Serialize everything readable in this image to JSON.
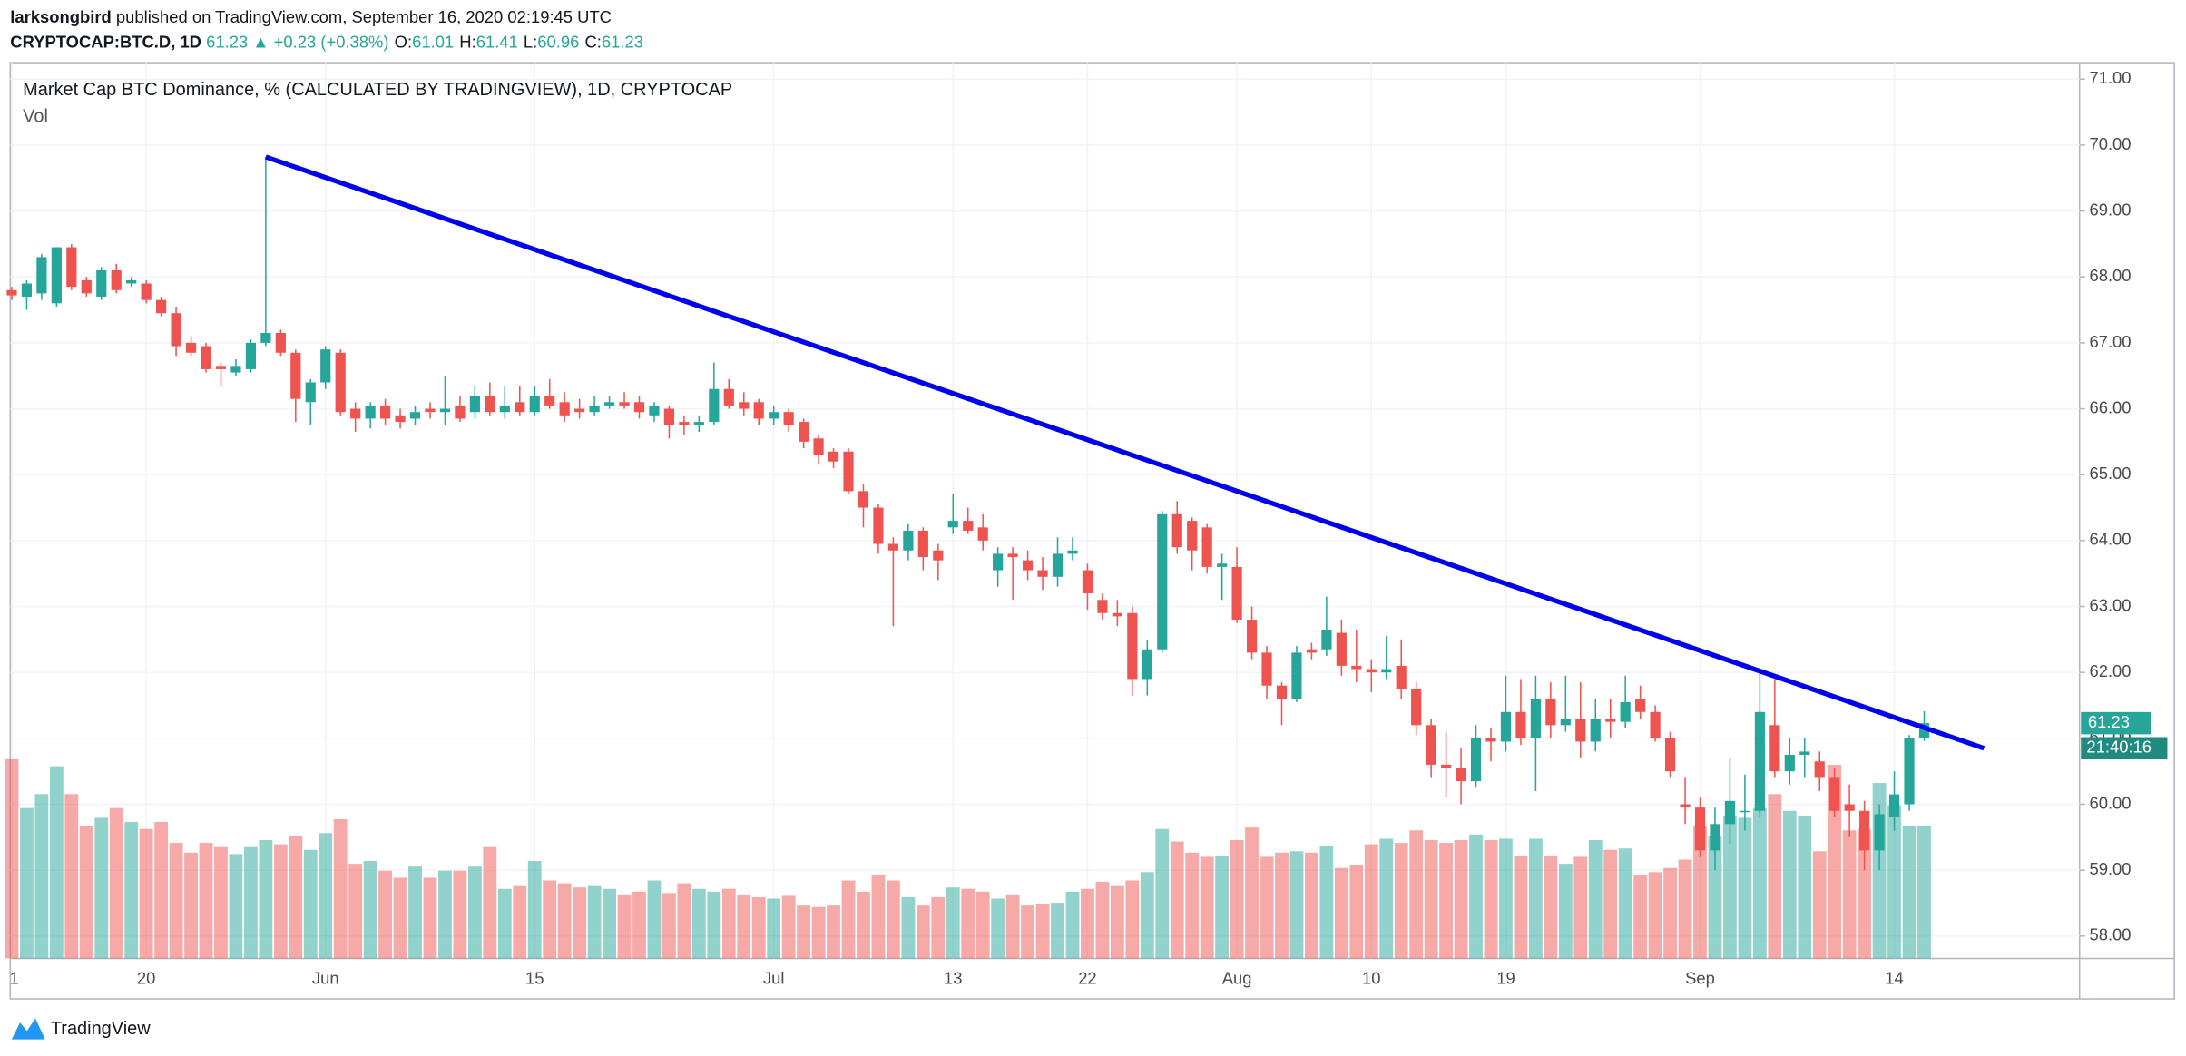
{
  "header": {
    "author": "larksongbird",
    "published": "published on TradingView.com, September 16, 2020 02:19:45 UTC",
    "symbol": "CRYPTOCAP:BTC.D, 1D",
    "last": "61.23",
    "change": "▲ +0.23 (+0.38%)",
    "ohlc_labels": [
      {
        "label": "O:",
        "value": "61.01"
      },
      {
        "label": "H:",
        "value": "61.41"
      },
      {
        "label": "L:",
        "value": "60.96"
      },
      {
        "label": "C:",
        "value": "61.23"
      }
    ]
  },
  "footer": {
    "brand": "TradingView"
  },
  "chart_data": {
    "type": "candlestick",
    "title": "Market Cap BTC Dominance, % (CALCULATED BY TRADINGVIEW), 1D, CRYPTOCAP",
    "volume_label": "Vol",
    "countdown": "21:40:16",
    "up_color": "#26a69a",
    "down_color": "#ef5350",
    "grid": true,
    "xlim": [
      -0.1,
      138.4
    ],
    "xticks": [
      {
        "value": 0,
        "label": "1"
      },
      {
        "value": 9,
        "label": "20"
      },
      {
        "value": 21,
        "label": "Jun"
      },
      {
        "value": 35,
        "label": "15"
      },
      {
        "value": 51,
        "label": "Jul"
      },
      {
        "value": 63,
        "label": "13"
      },
      {
        "value": 72,
        "label": "22"
      },
      {
        "value": 82,
        "label": "Aug"
      },
      {
        "value": 91,
        "label": "10"
      },
      {
        "value": 100,
        "label": "19"
      },
      {
        "value": 113,
        "label": "Sep"
      },
      {
        "value": 126,
        "label": "14"
      }
    ],
    "ylim": [
      57.66,
      71.25
    ],
    "yticks": [
      {
        "value": 58,
        "label": "58.00"
      },
      {
        "value": 59,
        "label": "59.00"
      },
      {
        "value": 60,
        "label": "60.00"
      },
      {
        "value": 61,
        "label": "61.00"
      },
      {
        "value": 62,
        "label": "62.00"
      },
      {
        "value": 63,
        "label": "63.00"
      },
      {
        "value": 64,
        "label": "64.00"
      },
      {
        "value": 65,
        "label": "65.00"
      },
      {
        "value": 66,
        "label": "66.00"
      },
      {
        "value": 67,
        "label": "67.00"
      },
      {
        "value": 68,
        "label": "68.00"
      },
      {
        "value": 69,
        "label": "69.00"
      },
      {
        "value": 70,
        "label": "70.00"
      },
      {
        "value": 71,
        "label": "71.00"
      }
    ],
    "trendline": {
      "color": "#0000ee",
      "x": [
        17,
        132
      ],
      "values": [
        69.82,
        60.85
      ]
    },
    "ohlc": [
      [
        67.8,
        67.85,
        67.65,
        67.72
      ],
      [
        67.7,
        67.95,
        67.5,
        67.9
      ],
      [
        67.75,
        68.35,
        67.65,
        68.3
      ],
      [
        67.6,
        68.45,
        67.55,
        68.45
      ],
      [
        68.45,
        68.5,
        67.8,
        67.85
      ],
      [
        67.95,
        68.0,
        67.7,
        67.75
      ],
      [
        67.7,
        68.15,
        67.65,
        68.1
      ],
      [
        68.1,
        68.2,
        67.75,
        67.8
      ],
      [
        67.9,
        68.0,
        67.85,
        67.95
      ],
      [
        67.9,
        67.95,
        67.6,
        67.65
      ],
      [
        67.65,
        67.7,
        67.4,
        67.45
      ],
      [
        67.45,
        67.55,
        66.8,
        66.95
      ],
      [
        67.0,
        67.1,
        66.8,
        66.85
      ],
      [
        66.95,
        67.0,
        66.55,
        66.6
      ],
      [
        66.65,
        66.7,
        66.35,
        66.6
      ],
      [
        66.55,
        66.75,
        66.5,
        66.65
      ],
      [
        66.6,
        67.05,
        66.55,
        67.0
      ],
      [
        67.0,
        69.82,
        66.95,
        67.15
      ],
      [
        67.15,
        67.2,
        66.8,
        66.85
      ],
      [
        66.85,
        66.9,
        65.8,
        66.15
      ],
      [
        66.1,
        66.45,
        65.75,
        66.4
      ],
      [
        66.4,
        66.95,
        66.3,
        66.9
      ],
      [
        66.85,
        66.9,
        65.9,
        65.95
      ],
      [
        66.0,
        66.1,
        65.65,
        65.85
      ],
      [
        65.85,
        66.1,
        65.7,
        66.05
      ],
      [
        66.05,
        66.15,
        65.75,
        65.85
      ],
      [
        65.9,
        66.0,
        65.7,
        65.8
      ],
      [
        65.85,
        66.05,
        65.75,
        65.95
      ],
      [
        66.0,
        66.1,
        65.85,
        65.95
      ],
      [
        65.95,
        66.5,
        65.75,
        66.0
      ],
      [
        66.05,
        66.2,
        65.8,
        65.85
      ],
      [
        65.95,
        66.35,
        65.85,
        66.2
      ],
      [
        66.2,
        66.4,
        65.9,
        65.95
      ],
      [
        65.95,
        66.35,
        65.85,
        66.05
      ],
      [
        66.1,
        66.35,
        65.9,
        65.95
      ],
      [
        65.95,
        66.35,
        65.9,
        66.2
      ],
      [
        66.2,
        66.45,
        66.0,
        66.05
      ],
      [
        66.1,
        66.25,
        65.8,
        65.9
      ],
      [
        66.0,
        66.15,
        65.85,
        65.95
      ],
      [
        65.95,
        66.2,
        65.9,
        66.05
      ],
      [
        66.05,
        66.2,
        66.0,
        66.1
      ],
      [
        66.1,
        66.25,
        66.0,
        66.05
      ],
      [
        66.1,
        66.2,
        65.85,
        65.95
      ],
      [
        65.9,
        66.1,
        65.8,
        66.05
      ],
      [
        66.0,
        66.05,
        65.55,
        65.75
      ],
      [
        65.8,
        65.9,
        65.6,
        65.75
      ],
      [
        65.75,
        65.9,
        65.65,
        65.8
      ],
      [
        65.8,
        66.7,
        65.75,
        66.3
      ],
      [
        66.3,
        66.45,
        66.0,
        66.05
      ],
      [
        66.1,
        66.25,
        65.9,
        66.0
      ],
      [
        66.1,
        66.15,
        65.75,
        65.85
      ],
      [
        65.85,
        66.05,
        65.75,
        65.95
      ],
      [
        65.95,
        66.0,
        65.65,
        65.75
      ],
      [
        65.8,
        65.85,
        65.4,
        65.5
      ],
      [
        65.55,
        65.6,
        65.15,
        65.3
      ],
      [
        65.35,
        65.4,
        65.1,
        65.2
      ],
      [
        65.35,
        65.4,
        64.7,
        64.75
      ],
      [
        64.75,
        64.85,
        64.2,
        64.5
      ],
      [
        64.5,
        64.55,
        63.8,
        63.95
      ],
      [
        63.95,
        64.05,
        62.7,
        63.85
      ],
      [
        63.85,
        64.25,
        63.7,
        64.15
      ],
      [
        64.15,
        64.2,
        63.55,
        63.75
      ],
      [
        63.85,
        63.95,
        63.4,
        63.7
      ],
      [
        64.2,
        64.7,
        64.1,
        64.3
      ],
      [
        64.3,
        64.5,
        64.1,
        64.15
      ],
      [
        64.2,
        64.4,
        63.85,
        64.0
      ],
      [
        63.55,
        63.9,
        63.3,
        63.8
      ],
      [
        63.8,
        63.9,
        63.1,
        63.75
      ],
      [
        63.7,
        63.85,
        63.4,
        63.55
      ],
      [
        63.55,
        63.75,
        63.25,
        63.45
      ],
      [
        63.45,
        64.05,
        63.3,
        63.8
      ],
      [
        63.8,
        64.05,
        63.7,
        63.85
      ],
      [
        63.55,
        63.65,
        62.95,
        63.2
      ],
      [
        63.1,
        63.2,
        62.8,
        62.9
      ],
      [
        62.9,
        63.1,
        62.7,
        62.85
      ],
      [
        62.9,
        63.0,
        61.65,
        61.9
      ],
      [
        61.9,
        62.5,
        61.65,
        62.35
      ],
      [
        62.35,
        64.45,
        62.3,
        64.4
      ],
      [
        64.4,
        64.6,
        63.8,
        63.9
      ],
      [
        64.3,
        64.35,
        63.55,
        63.85
      ],
      [
        64.2,
        64.25,
        63.5,
        63.6
      ],
      [
        63.6,
        63.8,
        63.1,
        63.65
      ],
      [
        63.6,
        63.9,
        62.75,
        62.8
      ],
      [
        62.8,
        63.0,
        62.2,
        62.3
      ],
      [
        62.3,
        62.4,
        61.6,
        61.8
      ],
      [
        61.8,
        61.85,
        61.2,
        61.6
      ],
      [
        61.6,
        62.4,
        61.55,
        62.3
      ],
      [
        62.35,
        62.45,
        62.2,
        62.3
      ],
      [
        62.35,
        63.15,
        62.25,
        62.65
      ],
      [
        62.6,
        62.8,
        61.95,
        62.1
      ],
      [
        62.1,
        62.65,
        61.85,
        62.05
      ],
      [
        62.05,
        62.2,
        61.7,
        62.0
      ],
      [
        62.0,
        62.55,
        61.9,
        62.05
      ],
      [
        62.1,
        62.5,
        61.6,
        61.75
      ],
      [
        61.75,
        61.85,
        61.05,
        61.2
      ],
      [
        61.2,
        61.3,
        60.4,
        60.6
      ],
      [
        60.6,
        61.1,
        60.1,
        60.55
      ],
      [
        60.55,
        60.85,
        60.0,
        60.35
      ],
      [
        60.35,
        61.2,
        60.25,
        61.0
      ],
      [
        61.0,
        61.15,
        60.65,
        60.95
      ],
      [
        60.95,
        61.95,
        60.8,
        61.4
      ],
      [
        61.4,
        61.9,
        60.9,
        61.0
      ],
      [
        61.0,
        61.95,
        60.2,
        61.6
      ],
      [
        61.6,
        61.85,
        61.0,
        61.2
      ],
      [
        61.2,
        61.95,
        61.1,
        61.3
      ],
      [
        61.3,
        61.85,
        60.7,
        60.95
      ],
      [
        60.95,
        61.6,
        60.8,
        61.3
      ],
      [
        61.3,
        61.6,
        61.0,
        61.25
      ],
      [
        61.25,
        61.95,
        61.15,
        61.55
      ],
      [
        61.6,
        61.8,
        61.3,
        61.4
      ],
      [
        61.4,
        61.5,
        60.95,
        61.0
      ],
      [
        61.0,
        61.1,
        60.4,
        60.5
      ],
      [
        60.0,
        60.4,
        59.7,
        59.95
      ],
      [
        59.95,
        60.1,
        59.2,
        59.3
      ],
      [
        59.3,
        59.95,
        59.0,
        59.7
      ],
      [
        59.7,
        60.7,
        59.4,
        60.05
      ],
      [
        59.9,
        60.45,
        59.6,
        59.9
      ],
      [
        59.9,
        62.0,
        59.8,
        61.4
      ],
      [
        61.2,
        61.9,
        60.4,
        60.5
      ],
      [
        60.5,
        61.0,
        60.3,
        60.75
      ],
      [
        60.75,
        61.0,
        60.4,
        60.8
      ],
      [
        60.65,
        60.8,
        60.2,
        60.4
      ],
      [
        60.4,
        60.55,
        59.8,
        59.9
      ],
      [
        60.0,
        60.3,
        59.5,
        59.9
      ],
      [
        59.9,
        60.05,
        59.0,
        59.3
      ],
      [
        59.3,
        60.0,
        59.0,
        59.85
      ],
      [
        59.8,
        60.5,
        59.6,
        60.15
      ],
      [
        60.0,
        61.05,
        59.9,
        61.0
      ],
      [
        61.01,
        61.41,
        60.96,
        61.23
      ]
    ],
    "volume": [
      143,
      108,
      118,
      138,
      118,
      95,
      101,
      108,
      98,
      93,
      98,
      83,
      76,
      83,
      80,
      75,
      80,
      85,
      82,
      88,
      78,
      90,
      100,
      68,
      70,
      63,
      58,
      66,
      58,
      63,
      63,
      66,
      80,
      50,
      52,
      70,
      56,
      54,
      51,
      52,
      50,
      46,
      48,
      56,
      47,
      54,
      50,
      48,
      50,
      46,
      44,
      43,
      45,
      38,
      37,
      38,
      56,
      48,
      60,
      56,
      44,
      38,
      44,
      51,
      50,
      48,
      43,
      46,
      38,
      39,
      40,
      48,
      50,
      55,
      52,
      56,
      62,
      93,
      84,
      76,
      73,
      74,
      85,
      94,
      73,
      76,
      77,
      76,
      81,
      65,
      67,
      82,
      86,
      83,
      92,
      85,
      83,
      85,
      89,
      85,
      86,
      74,
      86,
      74,
      68,
      73,
      85,
      78,
      79,
      60,
      62,
      65,
      71,
      95,
      88,
      102,
      101,
      108,
      118,
      106,
      102,
      77,
      139,
      92,
      93,
      126,
      110,
      95,
      95
    ]
  }
}
